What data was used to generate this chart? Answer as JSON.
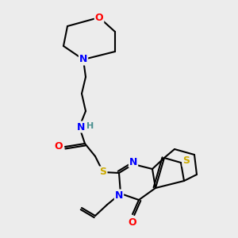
{
  "bg_color": "#ececec",
  "bond_color": "#000000",
  "atom_colors": {
    "N": "#0000ff",
    "O": "#ff0000",
    "S": "#ccaa00",
    "H": "#4a9090",
    "C": "#000000"
  },
  "figsize": [
    3.0,
    3.0
  ],
  "dpi": 100
}
